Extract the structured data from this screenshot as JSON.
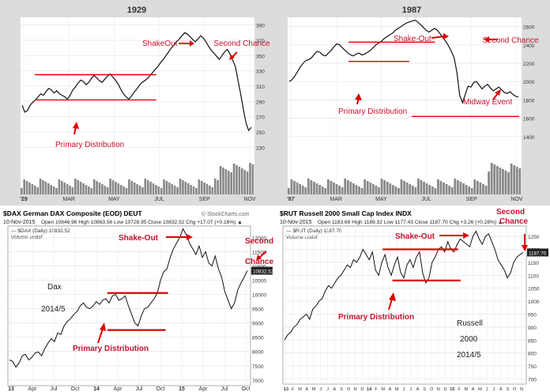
{
  "chart_data": [
    {
      "type": "line",
      "title": "1929",
      "x_ticks": [
        "'29",
        "MAR",
        "MAY",
        "JUL",
        "SEP",
        "NOV"
      ],
      "y_ticks": [
        230,
        250,
        270,
        290,
        310,
        330,
        350,
        370,
        390
      ],
      "ylim": [
        220,
        400
      ],
      "series": [
        {
          "values": [
            285,
            276,
            278,
            285,
            289,
            292,
            296,
            300,
            298,
            303,
            307,
            305,
            301,
            304,
            300,
            298,
            296,
            293,
            298,
            305,
            309,
            314,
            318,
            316,
            312,
            315,
            320,
            324,
            321,
            317,
            315,
            319,
            323,
            326,
            322,
            318,
            313,
            306,
            300,
            296,
            293,
            297,
            302,
            306,
            311,
            315,
            317,
            320,
            324,
            328,
            332,
            336,
            341,
            345,
            350,
            355,
            360,
            364,
            368,
            372,
            376,
            380,
            378,
            375,
            371,
            368,
            372,
            376,
            373,
            368,
            362,
            357,
            353,
            349,
            345,
            350,
            355,
            358,
            352,
            344,
            336,
            318,
            300,
            280,
            262,
            252,
            256
          ]
        }
      ],
      "annotations": [
        {
          "text": "ShakeOut"
        },
        {
          "text": "Second Chance"
        },
        {
          "text": "Primary Distribution"
        }
      ],
      "levels": [
        {
          "y": 325
        },
        {
          "y": 292
        }
      ]
    },
    {
      "type": "line",
      "title": "1987",
      "x_ticks": [
        "'87",
        "MAR",
        "MAY",
        "JUL",
        "SEP",
        "NOV"
      ],
      "y_ticks": [
        1400,
        1600,
        1800,
        2000,
        2200,
        2400,
        2600
      ],
      "ylim": [
        1200,
        2700
      ],
      "series": [
        {
          "values": [
            2000,
            2020,
            2060,
            2110,
            2160,
            2200,
            2230,
            2240,
            2260,
            2300,
            2330,
            2320,
            2290,
            2280,
            2310,
            2340,
            2380,
            2410,
            2400,
            2370,
            2340,
            2310,
            2290,
            2280,
            2300,
            2310,
            2290,
            2300,
            2320,
            2340,
            2370,
            2400,
            2420,
            2440,
            2470,
            2490,
            2510,
            2530,
            2560,
            2580,
            2600,
            2620,
            2640,
            2650,
            2660,
            2670,
            2650,
            2620,
            2590,
            2560,
            2540,
            2560,
            2580,
            2560,
            2520,
            2480,
            2440,
            2390,
            2330,
            2260,
            2100,
            1850,
            1770,
            1860,
            1950,
            1940,
            1990,
            2000,
            1960,
            1920,
            1950,
            1970,
            1930,
            1900,
            1920,
            1940,
            1910,
            1880,
            1870,
            1890,
            1860,
            1840,
            1830
          ]
        }
      ],
      "annotations": [
        {
          "text": "Shake-Out"
        },
        {
          "text": "Second Chance"
        },
        {
          "text": "Primary Distribution"
        },
        {
          "text": "Midway Event"
        }
      ],
      "levels": [
        {
          "y": 2430
        },
        {
          "y": 2220
        },
        {
          "y": 1620
        }
      ]
    },
    {
      "type": "line",
      "title": "$DAX German DAX Composite (EOD) DEUT",
      "date": "10-Nov-2015",
      "ohlc_text": "Open 10846.96  High 10863.56  Low 10728.95  Close 10832.52  Chg +17.07 (+0.16%) ▲",
      "legend_line": "— $DAX (Daily) 10832.52",
      "legend_volume": "Volume undef",
      "watermark": "© StockCharts.com",
      "last_value_label": "10832.52",
      "x_ticks": [
        "13",
        "Apr",
        "Jul",
        "Oct",
        "14",
        "Apr",
        "Jul",
        "Oct",
        "15",
        "Apr",
        "Jul",
        "Oct"
      ],
      "y_ticks": [
        7000,
        7500,
        8000,
        8500,
        9000,
        9500,
        10000,
        10500,
        11000,
        11500,
        12000
      ],
      "ylim": [
        6800,
        12400
      ],
      "series": [
        {
          "values": [
            7700,
            7650,
            7450,
            7600,
            7850,
            7900,
            7700,
            7800,
            7950,
            7980,
            7850,
            8100,
            8300,
            8450,
            8350,
            8650,
            8600,
            8900,
            9050,
            9150,
            9300,
            9400,
            9600,
            9700,
            9550,
            9500,
            9600,
            9750,
            9650,
            9800,
            9850,
            9700,
            9950,
            10000,
            9800,
            9850,
            9950,
            9600,
            9300,
            9000,
            8900,
            9250,
            9500,
            9550,
            9700,
            9850,
            10050,
            10500,
            10800,
            10900,
            11300,
            11600,
            11800,
            12000,
            12300,
            12100,
            11800,
            11600,
            11400,
            11700,
            11300,
            11500,
            11100,
            11000,
            11350,
            10900,
            10600,
            10100,
            9800,
            9500,
            9700,
            10150,
            10400,
            10600,
            10833
          ]
        }
      ],
      "annotations": [
        {
          "text": "Shake-Out"
        },
        {
          "text": "Second"
        },
        {
          "text": "Chance"
        },
        {
          "text": "Dax"
        },
        {
          "text": "2014/5"
        },
        {
          "text": "Primary Distribution"
        }
      ],
      "levels": [
        {
          "y": 10050
        },
        {
          "y": 8750
        }
      ]
    },
    {
      "type": "line",
      "title": "$RUT Russell 2000 Small Cap Index INDX",
      "date": "10-Nov-2015",
      "ohlc_text": "Open 1183.69  High 1189.32  Low 1177.43  Close 1187.70  Chg +3.26 (+0.28%) ▲",
      "legend_line": "— $RUT (Daily) 1187.70",
      "legend_volume": "Volume undef",
      "watermark": "© StockCharts.com",
      "last_value_label": "1187.70",
      "x_ticks": [
        "13",
        "F",
        "M",
        "A",
        "M",
        "J",
        "J",
        "A",
        "S",
        "O",
        "N",
        "D",
        "14",
        "F",
        "M",
        "A",
        "M",
        "J",
        "J",
        "A",
        "S",
        "O",
        "N",
        "D",
        "15",
        "F",
        "M",
        "A",
        "M",
        "J",
        "J",
        "A",
        "S",
        "O",
        "N"
      ],
      "y_ticks": [
        700,
        750,
        800,
        850,
        900,
        950,
        1000,
        1050,
        1100,
        1150,
        1200,
        1250
      ],
      "ylim": [
        680,
        1290
      ],
      "series": [
        {
          "values": [
            850,
            870,
            880,
            900,
            910,
            930,
            940,
            950,
            930,
            970,
            980,
            1000,
            1010,
            1040,
            1060,
            1050,
            1070,
            1090,
            1100,
            1120,
            1140,
            1130,
            1160,
            1150,
            1170,
            1200,
            1180,
            1160,
            1190,
            1120,
            1100,
            1150,
            1180,
            1130,
            1100,
            1140,
            1170,
            1110,
            1090,
            1140,
            1160,
            1130,
            1170,
            1190,
            1110,
            1070,
            1090,
            1150,
            1170,
            1200,
            1210,
            1190,
            1230,
            1200,
            1190,
            1220,
            1240,
            1230,
            1220,
            1210,
            1250,
            1270,
            1240,
            1220,
            1250,
            1260,
            1230,
            1200,
            1160,
            1140,
            1120,
            1090,
            1110,
            1150,
            1170,
            1180,
            1188
          ]
        }
      ],
      "annotations": [
        {
          "text": "Shake-Out"
        },
        {
          "text": "Second"
        },
        {
          "text": "Chance"
        },
        {
          "text": "Primary Distribution"
        },
        {
          "text": "Russell"
        },
        {
          "text": "2000"
        },
        {
          "text": "2014/5"
        }
      ],
      "levels": [
        {
          "y": 1200
        },
        {
          "y": 1080
        }
      ]
    }
  ]
}
